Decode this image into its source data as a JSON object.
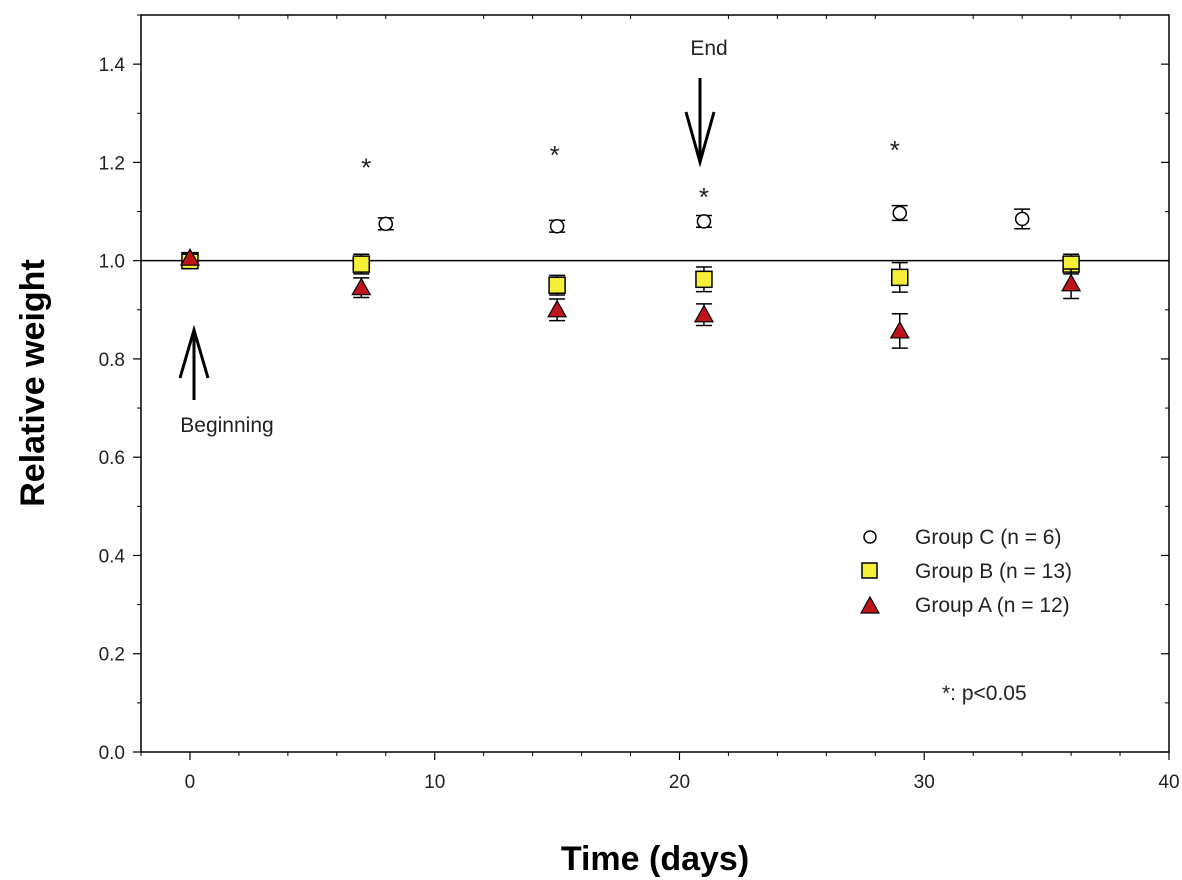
{
  "chart_data": {
    "type": "scatter",
    "xlabel": "Time (days)",
    "ylabel": "Relative weight",
    "xlim": [
      -2,
      40
    ],
    "ylim": [
      0,
      1.5
    ],
    "x_ticks": [
      "0",
      "10",
      "20",
      "30",
      "40"
    ],
    "y_ticks": [
      "0.0",
      "0.2",
      "0.4",
      "0.6",
      "0.8",
      "1.0",
      "1.2",
      "1.4"
    ],
    "reference_line_y": 1.0,
    "series": [
      {
        "name": "Group C (n = 6)",
        "marker": "circle",
        "color": "#ffffff",
        "points": [
          {
            "x": 0,
            "y": 1.0,
            "err": 0.008
          },
          {
            "x": 8,
            "y": 1.075,
            "err": 0.012
          },
          {
            "x": 15,
            "y": 1.07,
            "err": 0.012
          },
          {
            "x": 21,
            "y": 1.08,
            "err": 0.012
          },
          {
            "x": 29,
            "y": 1.097,
            "err": 0.015
          },
          {
            "x": 34,
            "y": 1.085,
            "err": 0.02
          }
        ]
      },
      {
        "name": "Group B (n = 13)",
        "marker": "square",
        "color": "#f5ef3a",
        "points": [
          {
            "x": 0,
            "y": 1.0,
            "err": 0.008
          },
          {
            "x": 7,
            "y": 0.993,
            "err": 0.02
          },
          {
            "x": 15,
            "y": 0.95,
            "err": 0.02
          },
          {
            "x": 21,
            "y": 0.962,
            "err": 0.025
          },
          {
            "x": 29,
            "y": 0.966,
            "err": 0.03
          },
          {
            "x": 36,
            "y": 0.993,
            "err": 0.02
          }
        ]
      },
      {
        "name": "Group A (n = 12)",
        "marker": "triangle",
        "color": "#c0141c",
        "points": [
          {
            "x": 0,
            "y": 1.005,
            "err": 0.008
          },
          {
            "x": 7,
            "y": 0.945,
            "err": 0.02
          },
          {
            "x": 15,
            "y": 0.9,
            "err": 0.022
          },
          {
            "x": 21,
            "y": 0.89,
            "err": 0.022
          },
          {
            "x": 29,
            "y": 0.857,
            "err": 0.035
          },
          {
            "x": 36,
            "y": 0.953,
            "err": 0.03
          }
        ]
      }
    ],
    "significance_marks": [
      {
        "x": 7.2,
        "y": 1.2,
        "label": "*"
      },
      {
        "x": 14.9,
        "y": 1.225,
        "label": "*"
      },
      {
        "x": 21,
        "y": 1.14,
        "label": "*"
      },
      {
        "x": 28.8,
        "y": 1.235,
        "label": "*"
      }
    ],
    "annotations": {
      "beginning": {
        "label": "Beginning",
        "x": 0.5,
        "arrow_direction": "up"
      },
      "end": {
        "label": "End",
        "x": 21,
        "arrow_direction": "down"
      }
    },
    "legend_placement": "bottom-right",
    "note": "*: p<0.05",
    "grid": false
  }
}
